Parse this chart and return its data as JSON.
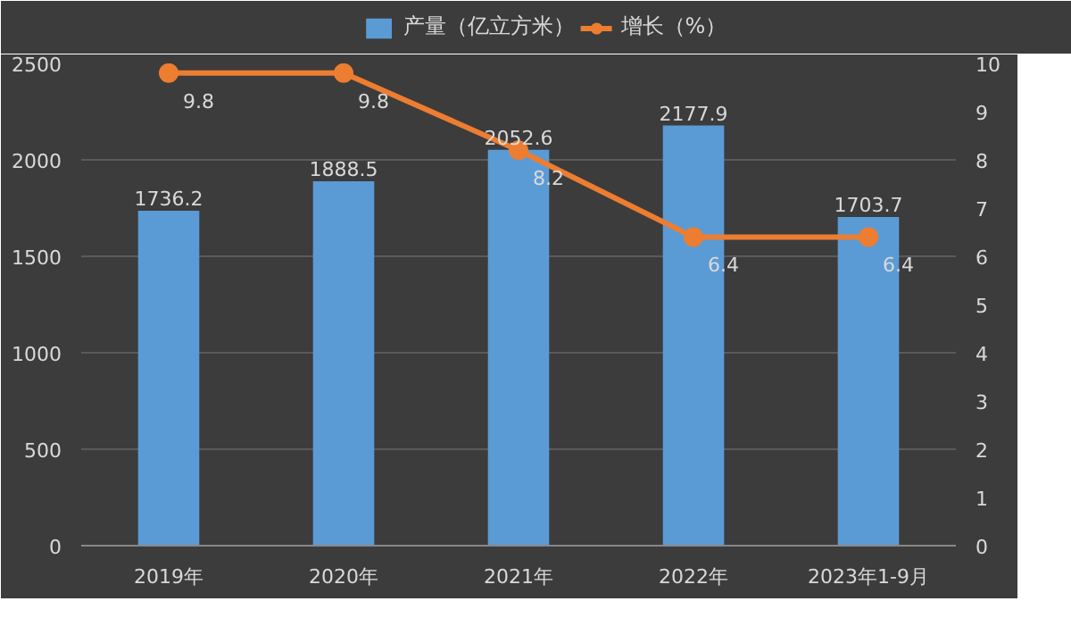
{
  "chart_data": {
    "type": "bar",
    "categories": [
      "2019年",
      "2020年",
      "2021年",
      "2022年",
      "2023年1-9月"
    ],
    "series": [
      {
        "name": "产量（亿立方米）",
        "color": "#5b9bd5",
        "values": [
          1736.2,
          1888.5,
          2052.6,
          2177.9,
          1703.7
        ]
      },
      {
        "name": "增长（%）",
        "type": "line",
        "axis": "y2",
        "color": "#ed7d31",
        "values": [
          9.8,
          9.8,
          8.2,
          6.4,
          6.4
        ]
      }
    ],
    "ylim": [
      0,
      2500
    ],
    "yticks": [
      0,
      500,
      1000,
      1500,
      2000,
      2500
    ],
    "y2lim": [
      0,
      10
    ],
    "y2ticks": [
      0,
      1,
      2,
      3,
      4,
      5,
      6,
      7,
      8,
      9,
      10
    ],
    "grid": "y",
    "legend": "top",
    "marker": "circle",
    "data_labels": true
  }
}
